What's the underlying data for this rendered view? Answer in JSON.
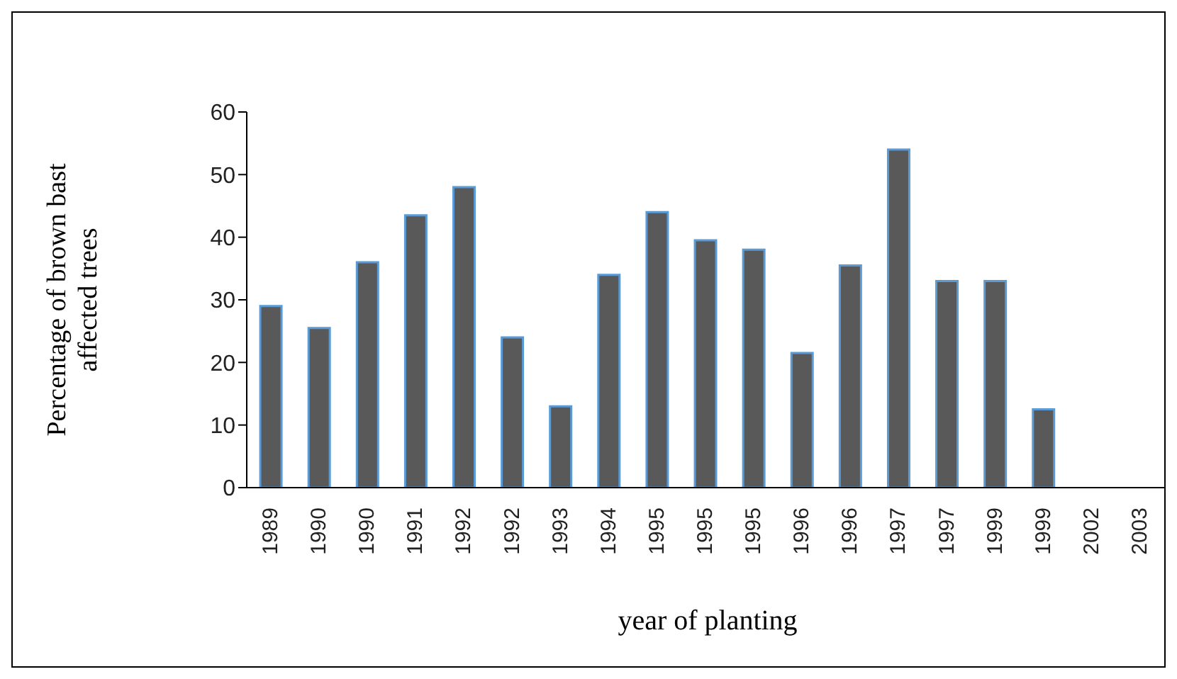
{
  "chart_data": {
    "type": "bar",
    "xlabel": "year of planting",
    "ylabel": "Percentage of brown bast affected trees",
    "categories": [
      "1989",
      "1990",
      "1990",
      "1991",
      "1992",
      "1992",
      "1993",
      "1994",
      "1995",
      "1995",
      "1995",
      "1996",
      "1996",
      "1997",
      "1997",
      "1999",
      "1999",
      "2002",
      "2003"
    ],
    "values": [
      29,
      25.5,
      36,
      43.5,
      48,
      24,
      13,
      34,
      44,
      39.5,
      38,
      21.5,
      35.5,
      54,
      33,
      33,
      12.5,
      0,
      0
    ],
    "color": "#595959",
    "ylim": [
      0,
      60
    ],
    "yticks": [
      0,
      10,
      20,
      30,
      40,
      50,
      60
    ],
    "grid": false
  }
}
